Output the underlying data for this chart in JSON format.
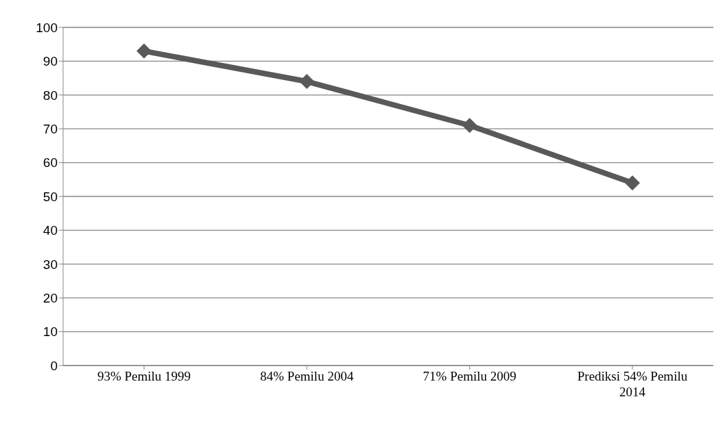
{
  "chart_data": {
    "type": "line",
    "categories": [
      "93% Pemilu 1999",
      "84% Pemilu 2004",
      "71% Pemilu 2009",
      "Prediksi 54% Pemilu 2014"
    ],
    "series": [
      {
        "color": "#595959",
        "values": [
          93,
          84,
          71,
          54
        ]
      }
    ],
    "ylim": [
      0,
      100
    ],
    "yticks": [
      0,
      10,
      20,
      30,
      40,
      50,
      60,
      70,
      80,
      90,
      100
    ],
    "grid": "y",
    "marker": "diamond",
    "line_style": "solid"
  }
}
